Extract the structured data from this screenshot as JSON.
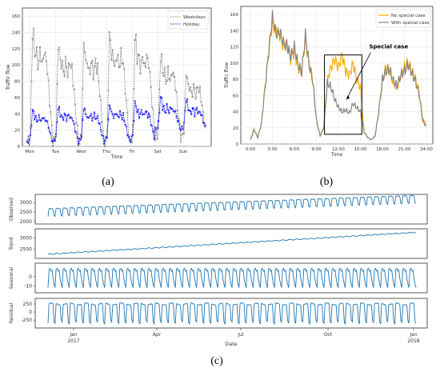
{
  "chart_data": [
    {
      "id": "a",
      "type": "line",
      "caption": "(a)",
      "xlabel": "Time",
      "ylabel": "Traffic flow",
      "categories": [
        "Mon",
        "Tue",
        "Wed",
        "Thu",
        "Fri",
        "Sat",
        "Sun"
      ],
      "ylim": [
        0,
        170
      ],
      "yticks": [
        0,
        20,
        40,
        60,
        80,
        100,
        120,
        140,
        160
      ],
      "legend_position": "top-right",
      "series": [
        {
          "name": "Weekdays",
          "color": "#808080",
          "marker": "x",
          "style": "dashed",
          "peaks": [
            155,
            138,
            138,
            150,
            148,
            123,
            98
          ],
          "lows": [
            5,
            4,
            4,
            4,
            6,
            10,
            10
          ]
        },
        {
          "name": "Holiday",
          "color": "#0000ff",
          "marker": "x",
          "style": "dashed",
          "peaks": [
            48,
            52,
            52,
            55,
            58,
            65,
            62
          ],
          "lows": [
            4,
            5,
            5,
            5,
            6,
            20,
            20
          ]
        }
      ]
    },
    {
      "id": "b",
      "type": "line",
      "caption": "(b)",
      "xlabel": "Time",
      "ylabel": "Traffic flow",
      "categories": [
        "0:00",
        "3:00",
        "6:00",
        "9:00",
        "12:00",
        "15:00",
        "18:00",
        "21:00",
        "24:00"
      ],
      "ylim": [
        0,
        170
      ],
      "yticks": [
        0,
        20,
        40,
        60,
        80,
        100,
        120,
        140,
        160
      ],
      "legend_position": "top-right",
      "annotation": "Special case",
      "series": [
        {
          "name": "No special case",
          "color": "#ffa500"
        },
        {
          "name": "With special case",
          "color": "#808080"
        }
      ],
      "x": [
        0,
        0.5,
        1,
        1.5,
        2,
        2.5,
        3,
        3.5,
        4,
        4.5,
        5,
        5.5,
        6,
        6.5,
        7,
        7.5,
        8,
        8.5,
        9,
        9.5,
        10,
        10.5,
        11,
        11.5,
        12,
        12.5,
        13,
        13.5,
        14,
        14.5,
        15,
        15.5,
        16,
        16.5,
        17,
        17.5,
        18,
        18.5,
        19,
        19.5,
        20,
        20.5,
        21,
        21.5,
        22,
        22.5,
        23,
        23.5,
        24
      ],
      "values_orange": [
        5,
        18,
        8,
        25,
        70,
        115,
        150,
        140,
        135,
        120,
        125,
        105,
        115,
        95,
        90,
        130,
        100,
        80,
        30,
        10,
        20,
        80,
        95,
        105,
        95,
        110,
        90,
        85,
        100,
        80,
        70,
        15,
        8,
        5,
        10,
        40,
        80,
        95,
        90,
        75,
        70,
        85,
        95,
        100,
        90,
        80,
        65,
        30,
        25
      ],
      "values_gray": [
        5,
        18,
        8,
        25,
        70,
        115,
        158,
        135,
        138,
        125,
        120,
        108,
        120,
        98,
        88,
        135,
        98,
        78,
        30,
        10,
        20,
        75,
        70,
        55,
        45,
        40,
        42,
        38,
        50,
        45,
        40,
        15,
        8,
        5,
        10,
        40,
        80,
        90,
        92,
        78,
        72,
        85,
        90,
        98,
        88,
        78,
        62,
        28,
        22
      ]
    },
    {
      "id": "c",
      "type": "line",
      "caption": "(c)",
      "xlabel": "Date",
      "x_ticks": [
        "Jan\n2017",
        "Apr",
        "Jul",
        "Oct",
        "Jan\n2018"
      ],
      "color": "#1f77b4",
      "panels": [
        {
          "name": "Observed",
          "yticks": [
            "2000",
            "2500",
            "3000"
          ],
          "ylim": [
            2000,
            3300
          ],
          "base_start": 2650,
          "base_end": 3350,
          "amplitude": 650
        },
        {
          "name": "Trend",
          "yticks": [
            "2500",
            "3000"
          ],
          "ylim": [
            2200,
            3300
          ],
          "base_start": 2280,
          "base_end": 3250,
          "amplitude": 20
        },
        {
          "name": "Seasonal",
          "yticks": [
            "-10",
            "0"
          ],
          "ylim": [
            -15,
            12
          ],
          "base_start": 0,
          "base_end": 0,
          "amplitude": 10
        },
        {
          "name": "Residual",
          "yticks": [
            "-250",
            "0",
            "250"
          ],
          "ylim": [
            -420,
            350
          ],
          "base_start": 0,
          "base_end": 0,
          "amplitude": 310
        }
      ]
    }
  ]
}
